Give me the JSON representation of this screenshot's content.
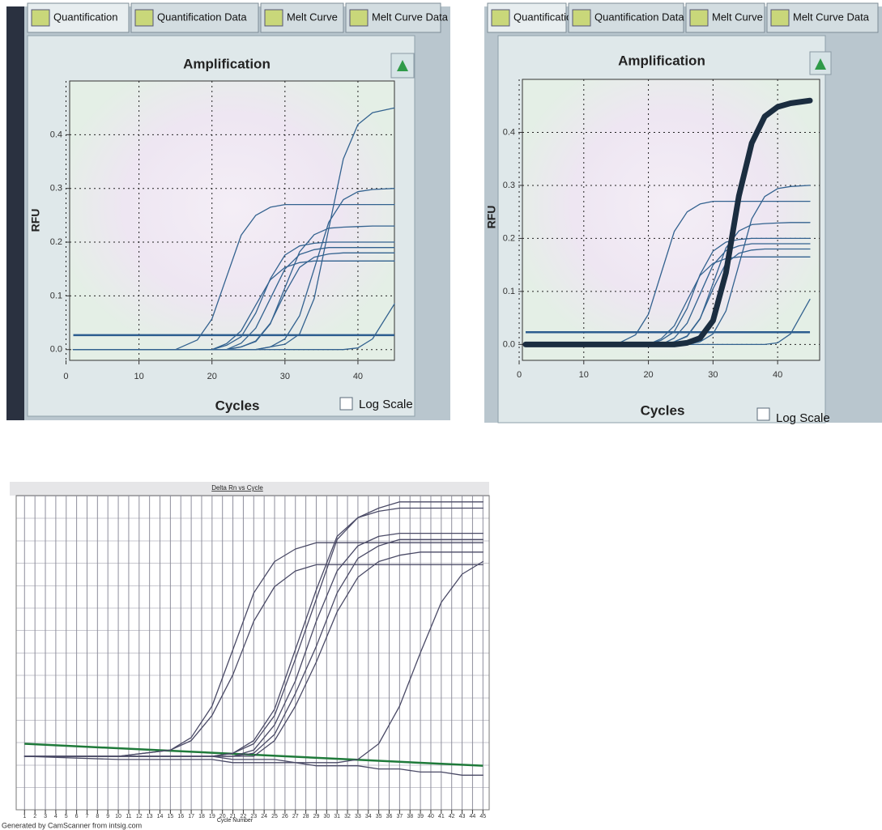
{
  "windows": [
    {
      "tabs": [
        "Quantification",
        "Quantification Data",
        "Melt Curve",
        "Melt Curve Data"
      ],
      "checkbox": "Log Scale"
    },
    {
      "tabs": [
        "Quantification",
        "Quantification Data",
        "Melt Curve",
        "Melt Curve Data"
      ],
      "checkbox": "Log Scale"
    }
  ],
  "footer": "Generated by CamScanner from intsig.com",
  "chart_data": [
    {
      "type": "line",
      "title": "Amplification",
      "x_label": "Cycles",
      "y_label": "RFU",
      "x": [
        1,
        10,
        15,
        18,
        20,
        22,
        24,
        26,
        28,
        30,
        32,
        34,
        36,
        38,
        40,
        42,
        45
      ],
      "xlim": [
        0.5,
        45
      ],
      "ylim": [
        -0.02,
        0.5
      ],
      "xticks": [
        0,
        10,
        20,
        30,
        40
      ],
      "yticks": [
        {
          "value": 0,
          "label": "0.0"
        },
        0.1,
        0.2,
        0.3,
        0.4
      ],
      "grid": true,
      "threshold": {
        "x": [
          1,
          45
        ],
        "values": [
          0.027,
          0.027
        ],
        "color": "#2c5d8f"
      },
      "series": [
        {
          "color": "#33628f",
          "values": [
            0,
            0,
            0,
            0,
            0,
            0,
            0,
            0,
            0.005,
            0.01,
            0.029,
            0.095,
            0.225,
            0.355,
            0.419,
            0.441,
            0.45
          ]
        },
        {
          "color": "#33628f",
          "values": [
            0,
            0,
            0,
            0,
            0,
            0,
            0,
            0,
            0.005,
            0.02,
            0.063,
            0.15,
            0.237,
            0.279,
            0.294,
            0.298,
            0.3
          ]
        },
        {
          "color": "#33628f",
          "values": [
            0,
            0,
            0,
            0.018,
            0.057,
            0.135,
            0.213,
            0.25,
            0.265,
            0.27,
            0.27,
            0.27,
            0.27,
            0.27,
            0.27,
            0.27,
            0.27
          ]
        },
        {
          "color": "#33628f",
          "values": [
            0,
            0,
            0,
            0,
            0,
            0,
            0.005,
            0.015,
            0.048,
            0.115,
            0.182,
            0.214,
            0.226,
            0.228,
            0.229,
            0.23,
            0.23
          ]
        },
        {
          "color": "#33628f",
          "values": [
            0,
            0,
            0,
            0,
            0,
            0.008,
            0.024,
            0.068,
            0.132,
            0.176,
            0.193,
            0.198,
            0.2,
            0.2,
            0.2,
            0.2,
            0.2
          ]
        },
        {
          "color": "#33628f",
          "values": [
            0,
            0,
            0,
            0,
            0,
            0,
            0.012,
            0.04,
            0.095,
            0.15,
            0.177,
            0.186,
            0.19,
            0.19,
            0.19,
            0.19,
            0.19
          ]
        },
        {
          "color": "#33628f",
          "values": [
            0,
            0,
            0,
            0,
            0,
            0,
            0.005,
            0.016,
            0.049,
            0.105,
            0.153,
            0.172,
            0.178,
            0.18,
            0.18,
            0.18,
            0.18
          ]
        },
        {
          "color": "#33628f",
          "values": [
            0,
            0,
            0,
            0,
            0,
            0.011,
            0.035,
            0.083,
            0.13,
            0.153,
            0.162,
            0.165,
            0.165,
            0.165,
            0.165,
            0.165,
            0.165
          ]
        },
        {
          "color": "#33628f",
          "values": [
            0,
            0,
            0,
            0,
            0,
            0,
            0,
            0,
            0,
            0,
            0,
            0,
            0,
            0,
            0.003,
            0.02,
            0.085
          ]
        }
      ]
    },
    {
      "type": "line",
      "title": "Amplification",
      "x_label": "Cycles",
      "y_label": "RFU",
      "x": [
        1,
        10,
        15,
        18,
        20,
        22,
        24,
        26,
        28,
        30,
        32,
        34,
        36,
        38,
        40,
        42,
        45
      ],
      "xlim": [
        0.5,
        46.5
      ],
      "ylim": [
        -0.03,
        0.5
      ],
      "xticks": [
        0,
        10,
        20,
        30,
        40
      ],
      "yticks": [
        {
          "value": 0,
          "label": "0.0"
        },
        0.1,
        0.2,
        0.3,
        0.4
      ],
      "grid": true,
      "threshold": {
        "x": [
          1,
          45
        ],
        "values": [
          0.023,
          0.023
        ],
        "color": "#2c5d8f"
      },
      "series": [
        {
          "color": "#33628f",
          "values": [
            0,
            0,
            0,
            0,
            0,
            0,
            0,
            0,
            0.005,
            0.02,
            0.063,
            0.15,
            0.237,
            0.279,
            0.294,
            0.298,
            0.3
          ]
        },
        {
          "color": "#33628f",
          "values": [
            0,
            0,
            0,
            0.018,
            0.057,
            0.135,
            0.213,
            0.25,
            0.265,
            0.27,
            0.27,
            0.27,
            0.27,
            0.27,
            0.27,
            0.27,
            0.27
          ]
        },
        {
          "color": "#33628f",
          "values": [
            0,
            0,
            0,
            0,
            0,
            0,
            0.005,
            0.015,
            0.048,
            0.115,
            0.182,
            0.214,
            0.226,
            0.228,
            0.229,
            0.23,
            0.23
          ]
        },
        {
          "color": "#33628f",
          "values": [
            0,
            0,
            0,
            0,
            0,
            0.008,
            0.024,
            0.068,
            0.132,
            0.176,
            0.193,
            0.198,
            0.2,
            0.2,
            0.2,
            0.2,
            0.2
          ]
        },
        {
          "color": "#33628f",
          "values": [
            0,
            0,
            0,
            0,
            0,
            0,
            0.012,
            0.04,
            0.095,
            0.15,
            0.177,
            0.186,
            0.19,
            0.19,
            0.19,
            0.19,
            0.19
          ]
        },
        {
          "color": "#33628f",
          "values": [
            0,
            0,
            0,
            0,
            0,
            0,
            0.005,
            0.016,
            0.049,
            0.105,
            0.153,
            0.172,
            0.178,
            0.18,
            0.18,
            0.18,
            0.18
          ]
        },
        {
          "color": "#33628f",
          "values": [
            0,
            0,
            0,
            0,
            0,
            0.011,
            0.035,
            0.083,
            0.13,
            0.153,
            0.162,
            0.165,
            0.165,
            0.165,
            0.165,
            0.165,
            0.165
          ]
        },
        {
          "color": "#33628f",
          "values": [
            0,
            0,
            0,
            0,
            0,
            0,
            0,
            0,
            0,
            0,
            0,
            0,
            0,
            0,
            0.003,
            0.02,
            0.085
          ]
        },
        {
          "color": "#1b2d40",
          "width": 7,
          "values": [
            0,
            0,
            0,
            0,
            0,
            0,
            0,
            0.003,
            0.012,
            0.045,
            0.135,
            0.28,
            0.38,
            0.43,
            0.448,
            0.455,
            0.46
          ]
        }
      ]
    },
    {
      "type": "line",
      "title": "Delta Rn vs Cycle",
      "x_label": "Cycle Number",
      "x": [
        1,
        10,
        15,
        17,
        19,
        21,
        23,
        25,
        27,
        29,
        31,
        33,
        35,
        37,
        39,
        41,
        43,
        45
      ],
      "xlim": [
        0.2,
        45.6
      ],
      "ylim": [
        0,
        1
      ],
      "xticks": [
        1,
        2,
        3,
        4,
        5,
        6,
        7,
        8,
        9,
        10,
        11,
        12,
        13,
        14,
        15,
        16,
        17,
        18,
        19,
        20,
        21,
        22,
        23,
        24,
        25,
        26,
        27,
        28,
        29,
        30,
        31,
        32,
        33,
        34,
        35,
        36,
        37,
        38,
        39,
        40,
        41,
        42,
        43,
        44,
        45
      ],
      "grid": true,
      "threshold": {
        "x": [
          1,
          45
        ],
        "values": [
          0.21,
          0.14
        ],
        "color": "#1f7a3a"
      },
      "series": [
        {
          "color": "#4a4a66",
          "values": [
            0.17,
            0.17,
            0.19,
            0.23,
            0.33,
            0.51,
            0.69,
            0.79,
            0.83,
            0.85,
            0.85,
            0.85,
            0.85,
            0.85,
            0.85,
            0.85,
            0.85,
            0.85
          ]
        },
        {
          "color": "#4a4a66",
          "values": [
            0.17,
            0.17,
            0.19,
            0.22,
            0.3,
            0.43,
            0.6,
            0.71,
            0.76,
            0.78,
            0.78,
            0.78,
            0.78,
            0.78,
            0.78,
            0.78,
            0.78,
            0.78
          ]
        },
        {
          "color": "#4a4a66",
          "values": [
            0.17,
            0.17,
            0.17,
            0.17,
            0.17,
            0.18,
            0.21,
            0.3,
            0.48,
            0.67,
            0.86,
            0.93,
            0.96,
            0.98,
            0.98,
            0.98,
            0.98,
            0.98
          ]
        },
        {
          "color": "#4a4a66",
          "values": [
            0.17,
            0.17,
            0.17,
            0.17,
            0.17,
            0.18,
            0.22,
            0.32,
            0.51,
            0.7,
            0.87,
            0.93,
            0.95,
            0.96,
            0.96,
            0.96,
            0.96,
            0.96
          ]
        },
        {
          "color": "#4a4a66",
          "values": [
            0.17,
            0.17,
            0.17,
            0.17,
            0.17,
            0.17,
            0.19,
            0.27,
            0.41,
            0.6,
            0.76,
            0.84,
            0.87,
            0.88,
            0.88,
            0.88,
            0.88,
            0.88
          ]
        },
        {
          "color": "#4a4a66",
          "values": [
            0.17,
            0.17,
            0.17,
            0.17,
            0.17,
            0.17,
            0.18,
            0.24,
            0.37,
            0.52,
            0.69,
            0.8,
            0.84,
            0.86,
            0.86,
            0.86,
            0.86,
            0.86
          ]
        },
        {
          "color": "#4a4a66",
          "values": [
            0.17,
            0.17,
            0.17,
            0.17,
            0.17,
            0.17,
            0.17,
            0.22,
            0.33,
            0.47,
            0.63,
            0.74,
            0.79,
            0.81,
            0.82,
            0.82,
            0.82,
            0.82
          ]
        },
        {
          "color": "#4a4a66",
          "values": [
            0.17,
            0.17,
            0.17,
            0.17,
            0.17,
            0.16,
            0.16,
            0.16,
            0.15,
            0.15,
            0.15,
            0.16,
            0.21,
            0.33,
            0.5,
            0.66,
            0.75,
            0.79
          ]
        },
        {
          "color": "#4a4a66",
          "values": [
            0.17,
            0.16,
            0.16,
            0.16,
            0.16,
            0.15,
            0.15,
            0.15,
            0.15,
            0.14,
            0.14,
            0.14,
            0.13,
            0.13,
            0.12,
            0.12,
            0.11,
            0.11
          ]
        }
      ]
    }
  ]
}
